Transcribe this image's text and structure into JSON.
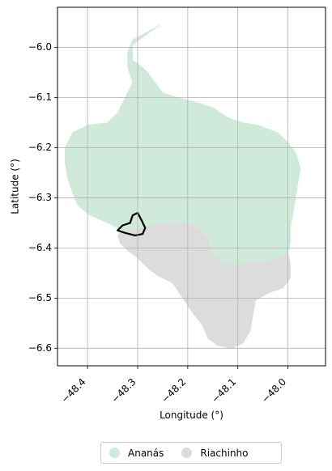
{
  "chart_data": {
    "type": "map",
    "xlabel": "Longitude (°)",
    "ylabel": "Latitude (°)",
    "xlim": [
      -48.46,
      -47.925
    ],
    "ylim": [
      -6.635,
      -5.92
    ],
    "xticks": [
      {
        "value": -48.4,
        "label": "−48.4"
      },
      {
        "value": -48.3,
        "label": "−48.3"
      },
      {
        "value": -48.2,
        "label": "−48.2"
      },
      {
        "value": -48.1,
        "label": "−48.1"
      },
      {
        "value": -48.0,
        "label": "−48.0"
      }
    ],
    "yticks": [
      {
        "value": -6.0,
        "label": "−6.0"
      },
      {
        "value": -6.1,
        "label": "−6.1"
      },
      {
        "value": -6.2,
        "label": "−6.2"
      },
      {
        "value": -6.3,
        "label": "−6.3"
      },
      {
        "value": -6.4,
        "label": "−6.4"
      },
      {
        "value": -6.5,
        "label": "−6.5"
      },
      {
        "value": -6.6,
        "label": "−6.6"
      }
    ],
    "grid": true,
    "legend_position": "bottom-center",
    "regions": [
      {
        "name": "Ananás",
        "color": "#cfeadb",
        "polygon": [
          [
            -48.255,
            -5.955
          ],
          [
            -48.29,
            -5.98
          ],
          [
            -48.31,
            -5.995
          ],
          [
            -48.31,
            -6.025
          ],
          [
            -48.29,
            -6.04
          ],
          [
            -48.28,
            -6.05
          ],
          [
            -48.265,
            -6.07
          ],
          [
            -48.25,
            -6.09
          ],
          [
            -48.22,
            -6.1
          ],
          [
            -48.18,
            -6.11
          ],
          [
            -48.15,
            -6.12
          ],
          [
            -48.12,
            -6.14
          ],
          [
            -48.09,
            -6.15
          ],
          [
            -48.06,
            -6.155
          ],
          [
            -48.02,
            -6.17
          ],
          [
            -48.0,
            -6.19
          ],
          [
            -47.985,
            -6.21
          ],
          [
            -47.975,
            -6.24
          ],
          [
            -47.98,
            -6.27
          ],
          [
            -47.985,
            -6.3
          ],
          [
            -47.99,
            -6.33
          ],
          [
            -47.995,
            -6.36
          ],
          [
            -47.995,
            -6.39
          ],
          [
            -48.0,
            -6.41
          ],
          [
            -48.02,
            -6.42
          ],
          [
            -48.04,
            -6.425
          ],
          [
            -48.07,
            -6.43
          ],
          [
            -48.1,
            -6.435
          ],
          [
            -48.13,
            -6.43
          ],
          [
            -48.155,
            -6.41
          ],
          [
            -48.16,
            -6.38
          ],
          [
            -48.18,
            -6.36
          ],
          [
            -48.21,
            -6.35
          ],
          [
            -48.25,
            -6.35
          ],
          [
            -48.29,
            -6.36
          ],
          [
            -48.33,
            -6.365
          ],
          [
            -48.36,
            -6.35
          ],
          [
            -48.395,
            -6.335
          ],
          [
            -48.42,
            -6.315
          ],
          [
            -48.43,
            -6.29
          ],
          [
            -48.44,
            -6.26
          ],
          [
            -48.445,
            -6.23
          ],
          [
            -48.445,
            -6.2
          ],
          [
            -48.43,
            -6.17
          ],
          [
            -48.4,
            -6.155
          ],
          [
            -48.36,
            -6.15
          ],
          [
            -48.34,
            -6.13
          ],
          [
            -48.33,
            -6.11
          ],
          [
            -48.32,
            -6.09
          ],
          [
            -48.31,
            -6.07
          ],
          [
            -48.32,
            -6.04
          ],
          [
            -48.32,
            -6.01
          ],
          [
            -48.31,
            -5.985
          ]
        ]
      },
      {
        "name": "Riachinho",
        "color": "#dcdcdc",
        "polygon": [
          [
            -48.33,
            -6.365
          ],
          [
            -48.29,
            -6.36
          ],
          [
            -48.25,
            -6.35
          ],
          [
            -48.21,
            -6.35
          ],
          [
            -48.18,
            -6.36
          ],
          [
            -48.16,
            -6.38
          ],
          [
            -48.155,
            -6.41
          ],
          [
            -48.13,
            -6.43
          ],
          [
            -48.1,
            -6.435
          ],
          [
            -48.07,
            -6.43
          ],
          [
            -48.04,
            -6.425
          ],
          [
            -48.02,
            -6.42
          ],
          [
            -48.0,
            -6.41
          ],
          [
            -47.995,
            -6.43
          ],
          [
            -47.995,
            -6.46
          ],
          [
            -48.01,
            -6.48
          ],
          [
            -48.04,
            -6.49
          ],
          [
            -48.065,
            -6.505
          ],
          [
            -48.07,
            -6.535
          ],
          [
            -48.075,
            -6.565
          ],
          [
            -48.09,
            -6.59
          ],
          [
            -48.11,
            -6.6
          ],
          [
            -48.14,
            -6.595
          ],
          [
            -48.16,
            -6.58
          ],
          [
            -48.17,
            -6.555
          ],
          [
            -48.19,
            -6.53
          ],
          [
            -48.21,
            -6.5
          ],
          [
            -48.23,
            -6.47
          ],
          [
            -48.26,
            -6.455
          ],
          [
            -48.28,
            -6.44
          ],
          [
            -48.3,
            -6.42
          ],
          [
            -48.32,
            -6.405
          ],
          [
            -48.335,
            -6.39
          ],
          [
            -48.34,
            -6.375
          ]
        ]
      }
    ],
    "highlight_outline": {
      "color": "#000000",
      "polygon": [
        [
          -48.3,
          -6.33
        ],
        [
          -48.31,
          -6.335
        ],
        [
          -48.315,
          -6.35
        ],
        [
          -48.33,
          -6.355
        ],
        [
          -48.34,
          -6.365
        ],
        [
          -48.325,
          -6.37
        ],
        [
          -48.305,
          -6.375
        ],
        [
          -48.29,
          -6.372
        ],
        [
          -48.285,
          -6.36
        ],
        [
          -48.292,
          -6.345
        ]
      ]
    }
  },
  "legend": {
    "items": [
      {
        "label": "Ananás",
        "color": "#cfeadb"
      },
      {
        "label": "Riachinho",
        "color": "#dcdcdc"
      }
    ]
  }
}
